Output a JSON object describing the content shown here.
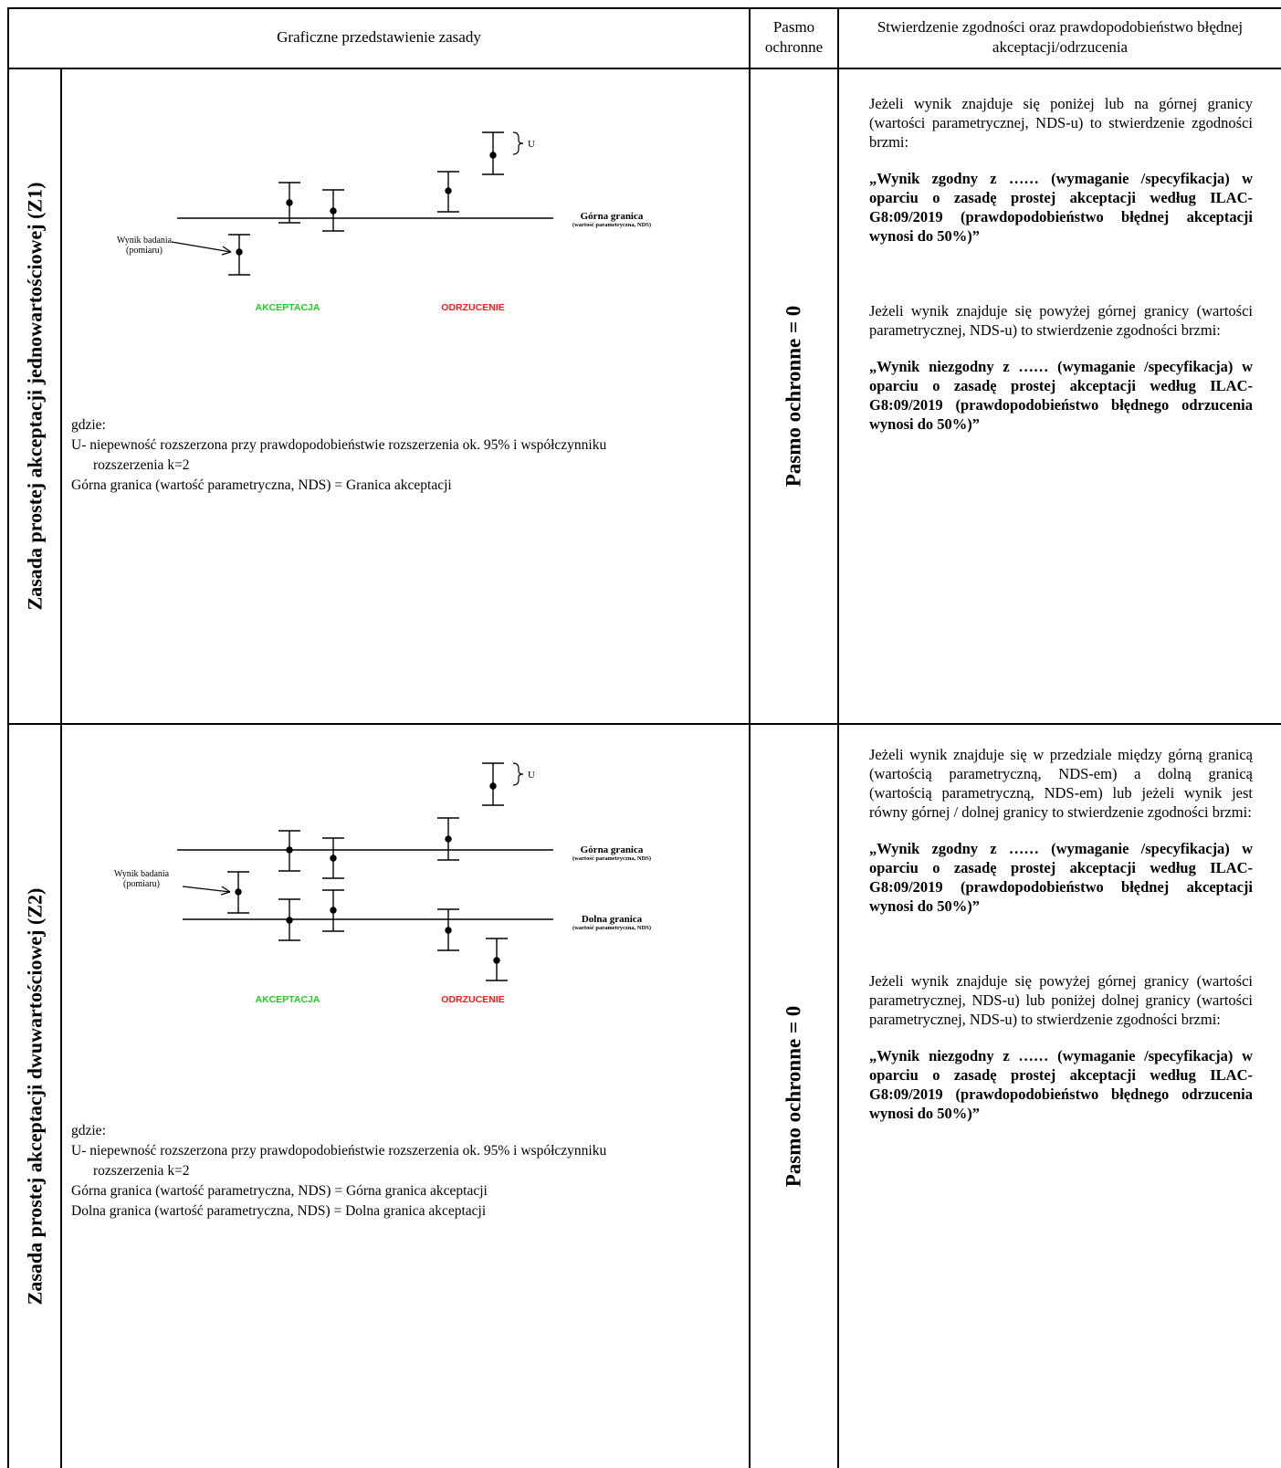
{
  "header": {
    "col_graphic": "Graficzne przedstawienie zasady",
    "col_band": "Pasmo ochronne",
    "col_statement": "Stwierdzenie zgodności oraz prawdopodobieństwo błędnej akceptacji/odrzucenia"
  },
  "rows": [
    {
      "title": "Zasada prostej akceptacji jednowartościowej (Z1)",
      "band": "Pasmo ochronne = 0",
      "diagram": {
        "u_label": "U",
        "upper_label": "Górna granica",
        "upper_sub": "(wartość parametryczna, NDS)",
        "result_label_1": "Wynik badania",
        "result_label_2": "(pomiaru)",
        "accept": "AKCEPTACJA",
        "reject": "ODRZUCENIE"
      },
      "where_title": "gdzie:",
      "where_lines": [
        "U- niepewność rozszerzona przy prawdopodobieństwie rozszerzenia ok. 95% i współczynniku",
        "rozszerzenia k=2",
        "Górna granica (wartość parametryczna, NDS) = Granica akceptacji"
      ],
      "statements": [
        "Jeżeli wynik znajduje się poniżej lub na górnej granicy (wartości parametrycznej, NDS-u) to stwierdzenie zgodności brzmi:",
        "„Wynik zgodny z …… (wymaganie /specyfikacja) w oparciu o zasadę prostej akceptacji według ILAC-G8:09/2019 (prawdopodobieństwo błędnej akceptacji wynosi do 50%)”",
        "Jeżeli wynik znajduje się powyżej górnej granicy (wartości parametrycznej, NDS-u) to stwierdzenie zgodności brzmi:",
        "„Wynik niezgodny z …… (wymaganie /specyfikacja) w oparciu o zasadę prostej akceptacji według ILAC-G8:09/2019 (prawdopodobieństwo błędnego odrzucenia wynosi do 50%)”"
      ]
    },
    {
      "title": "Zasada prostej akceptacji dwuwartościowej (Z2)",
      "band": "Pasmo ochronne = 0",
      "diagram": {
        "u_label": "U",
        "upper_label": "Górna granica",
        "upper_sub": "(wartość parametryczna, NDS)",
        "lower_label": "Dolna granica",
        "lower_sub": "(wartość parametryczna, NDS)",
        "result_label_1": "Wynik badania",
        "result_label_2": "(pomiaru)",
        "accept": "AKCEPTACJA",
        "reject": "ODRZUCENIE"
      },
      "where_title": "gdzie:",
      "where_lines": [
        "U- niepewność rozszerzona przy prawdopodobieństwie rozszerzenia ok. 95% i współczynniku",
        "rozszerzenia k=2",
        "Górna granica (wartość parametryczna, NDS) = Górna granica akceptacji",
        "Dolna granica (wartość parametryczna, NDS) = Dolna granica akceptacji"
      ],
      "statements": [
        "Jeżeli wynik znajduje się w przedziale między górną granicą (wartością parametryczną, NDS-em) a dolną granicą (wartością parametryczną, NDS-em) lub jeżeli wynik jest równy górnej / dolnej granicy to stwierdzenie zgodności brzmi:",
        "„Wynik zgodny z …… (wymaganie /specyfikacja) w oparciu o zasadę prostej akceptacji według ILAC-G8:09/2019 (prawdopodobieństwo błędnej akceptacji wynosi do 50%)”",
        "Jeżeli wynik znajduje się powyżej górnej granicy (wartości parametrycznej, NDS-u) lub poniżej dolnej granicy (wartości parametrycznej, NDS-u) to stwierdzenie zgodności brzmi:",
        "„Wynik niezgodny z …… (wymaganie /specyfikacja) w oparciu o zasadę prostej akceptacji według ILAC-G8:09/2019 (prawdopodobieństwo błędnego odrzucenia wynosi do 50%)”"
      ]
    }
  ],
  "colors": {
    "accept": "#22cc22",
    "reject": "#ff1a1a"
  }
}
